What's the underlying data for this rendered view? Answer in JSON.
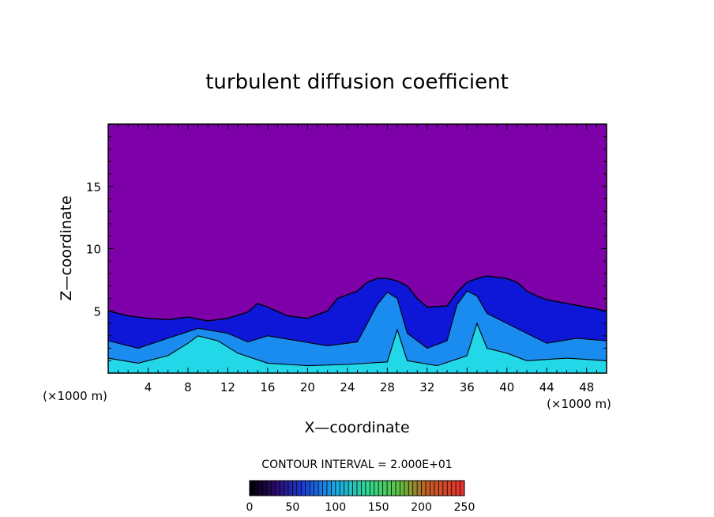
{
  "chart_data": {
    "type": "heatmap",
    "title": "turbulent diffusion coefficient",
    "xlabel": "X—coordinate",
    "ylabel": "Z—coordinate",
    "x_unit_left": "(×1000 m)",
    "x_unit_right": "(×1000 m)",
    "xlim": [
      0,
      50
    ],
    "ylim": [
      0,
      20
    ],
    "x_ticks": [
      4,
      8,
      12,
      16,
      20,
      24,
      28,
      32,
      36,
      40,
      44,
      48
    ],
    "y_ticks": [
      5,
      10,
      15
    ],
    "contour_interval_label": "CONTOUR INTERVAL = 2.000E+01",
    "colorbar": {
      "min": 0,
      "max": 250,
      "ticks": [
        0,
        50,
        100,
        150,
        200,
        250
      ]
    },
    "colors": {
      "background_field": "#7d00a8",
      "low": "#0e16d8",
      "mid": "#1a8cf0",
      "high": "#22d8e8",
      "peak": "#40e860"
    },
    "boundary_layer_top": [
      [
        0,
        5.0
      ],
      [
        2,
        4.6
      ],
      [
        4,
        4.4
      ],
      [
        6,
        4.3
      ],
      [
        8,
        4.5
      ],
      [
        10,
        4.2
      ],
      [
        12,
        4.4
      ],
      [
        14,
        4.9
      ],
      [
        15,
        5.6
      ],
      [
        16,
        5.3
      ],
      [
        18,
        4.6
      ],
      [
        20,
        4.4
      ],
      [
        22,
        5.0
      ],
      [
        23,
        6.0
      ],
      [
        25,
        6.6
      ],
      [
        26,
        7.3
      ],
      [
        27,
        7.6
      ],
      [
        28,
        7.6
      ],
      [
        29,
        7.4
      ],
      [
        30,
        7.0
      ],
      [
        31,
        6.0
      ],
      [
        32,
        5.3
      ],
      [
        34,
        5.4
      ],
      [
        35,
        6.5
      ],
      [
        36,
        7.3
      ],
      [
        37,
        7.6
      ],
      [
        38,
        7.8
      ],
      [
        39,
        7.7
      ],
      [
        40,
        7.6
      ],
      [
        41,
        7.3
      ],
      [
        42,
        6.6
      ],
      [
        43,
        6.2
      ],
      [
        44,
        5.9
      ],
      [
        46,
        5.6
      ],
      [
        48,
        5.3
      ],
      [
        50,
        5.0
      ]
    ],
    "mid_layer_top": [
      [
        0,
        2.6
      ],
      [
        3,
        2.0
      ],
      [
        6,
        2.8
      ],
      [
        9,
        3.6
      ],
      [
        12,
        3.2
      ],
      [
        14,
        2.5
      ],
      [
        16,
        3.0
      ],
      [
        19,
        2.6
      ],
      [
        22,
        2.2
      ],
      [
        25,
        2.5
      ],
      [
        27,
        5.5
      ],
      [
        28,
        6.5
      ],
      [
        29,
        6.0
      ],
      [
        30,
        3.2
      ],
      [
        32,
        2.0
      ],
      [
        34,
        2.6
      ],
      [
        35,
        5.5
      ],
      [
        36,
        6.6
      ],
      [
        37,
        6.2
      ],
      [
        38,
        4.8
      ],
      [
        40,
        4.0
      ],
      [
        42,
        3.2
      ],
      [
        44,
        2.4
      ],
      [
        47,
        2.8
      ],
      [
        50,
        2.6
      ]
    ],
    "high_layer_top": [
      [
        0,
        1.2
      ],
      [
        3,
        0.8
      ],
      [
        6,
        1.4
      ],
      [
        8,
        2.4
      ],
      [
        9,
        3.0
      ],
      [
        11,
        2.6
      ],
      [
        13,
        1.6
      ],
      [
        16,
        0.8
      ],
      [
        20,
        0.6
      ],
      [
        24,
        0.7
      ],
      [
        28,
        0.9
      ],
      [
        29,
        3.5
      ],
      [
        30,
        1.0
      ],
      [
        33,
        0.6
      ],
      [
        36,
        1.4
      ],
      [
        37,
        4.0
      ],
      [
        38,
        2.0
      ],
      [
        40,
        1.6
      ],
      [
        42,
        1.0
      ],
      [
        46,
        1.2
      ],
      [
        50,
        1.0
      ]
    ]
  }
}
